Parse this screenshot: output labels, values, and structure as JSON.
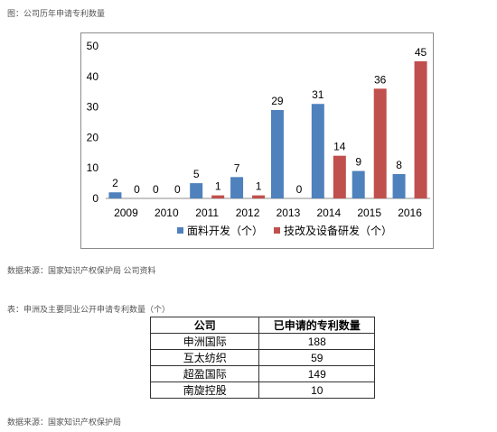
{
  "figure": {
    "caption": "图：公司历年申请专利数量",
    "source": "数据来源：国家知识产权保护局 公司资料"
  },
  "chart_data": {
    "type": "bar",
    "categories": [
      "2009",
      "2010",
      "2011",
      "2012",
      "2013",
      "2014",
      "2015",
      "2016"
    ],
    "series": [
      {
        "name": "面料开发（个）",
        "color": "#4f81bd",
        "values": [
          2,
          0,
          5,
          7,
          29,
          31,
          9,
          8
        ]
      },
      {
        "name": "技改及设备研发（个）",
        "color": "#c0504d",
        "values": [
          0,
          0,
          1,
          1,
          0,
          14,
          36,
          45
        ]
      }
    ],
    "title": "",
    "xlabel": "",
    "ylabel": "",
    "ylim": [
      0,
      50
    ],
    "yticks": [
      0,
      10,
      20,
      30,
      40,
      50
    ],
    "grid": false,
    "legend": "bottom",
    "data_labels": true
  },
  "table": {
    "caption": "表：申洲及主要同业公开申请专利数量（个）",
    "headers": [
      "公司",
      "已申请的专利数量"
    ],
    "rows": [
      [
        "申洲国际",
        "188"
      ],
      [
        "互太纺织",
        "59"
      ],
      [
        "超盈国际",
        "149"
      ],
      [
        "南旋控股",
        "10"
      ]
    ],
    "source": "数据来源：国家知识产权保护局"
  }
}
